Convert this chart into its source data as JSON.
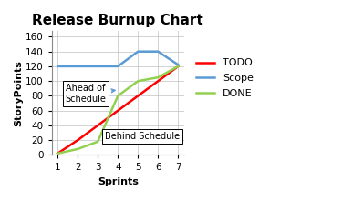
{
  "title": "Release Burnup Chart",
  "xlabel": "Sprints",
  "ylabel": "StoryPoints",
  "xlim": [
    0.7,
    7.3
  ],
  "ylim": [
    0,
    168
  ],
  "yticks": [
    0,
    20,
    40,
    60,
    80,
    100,
    120,
    140,
    160
  ],
  "xticks": [
    1,
    2,
    3,
    4,
    5,
    6,
    7
  ],
  "todo_x": [
    1,
    2,
    3,
    4,
    5,
    6,
    7
  ],
  "todo_y": [
    2,
    20,
    40,
    60,
    80,
    100,
    120
  ],
  "scope_x": [
    1,
    2,
    3,
    4,
    5,
    6,
    7
  ],
  "scope_y": [
    120,
    120,
    120,
    120,
    140,
    140,
    122
  ],
  "done_x": [
    1,
    2,
    3,
    4,
    5,
    6,
    7
  ],
  "done_y": [
    2,
    8,
    18,
    80,
    100,
    105,
    120
  ],
  "todo_color": "#FF0000",
  "scope_color": "#5B9BD5",
  "done_color": "#92D050",
  "legend_labels": [
    "TODO",
    "Scope",
    "DONE"
  ],
  "annotation_ahead_text": "Ahead of\nSchedule",
  "annotation_behind_text": "Behind Schedule",
  "background_color": "#ffffff",
  "grid_color": "#c0c0c0",
  "title_fontsize": 11,
  "label_fontsize": 8,
  "tick_fontsize": 7.5,
  "legend_fontsize": 8,
  "line_width": 1.8
}
